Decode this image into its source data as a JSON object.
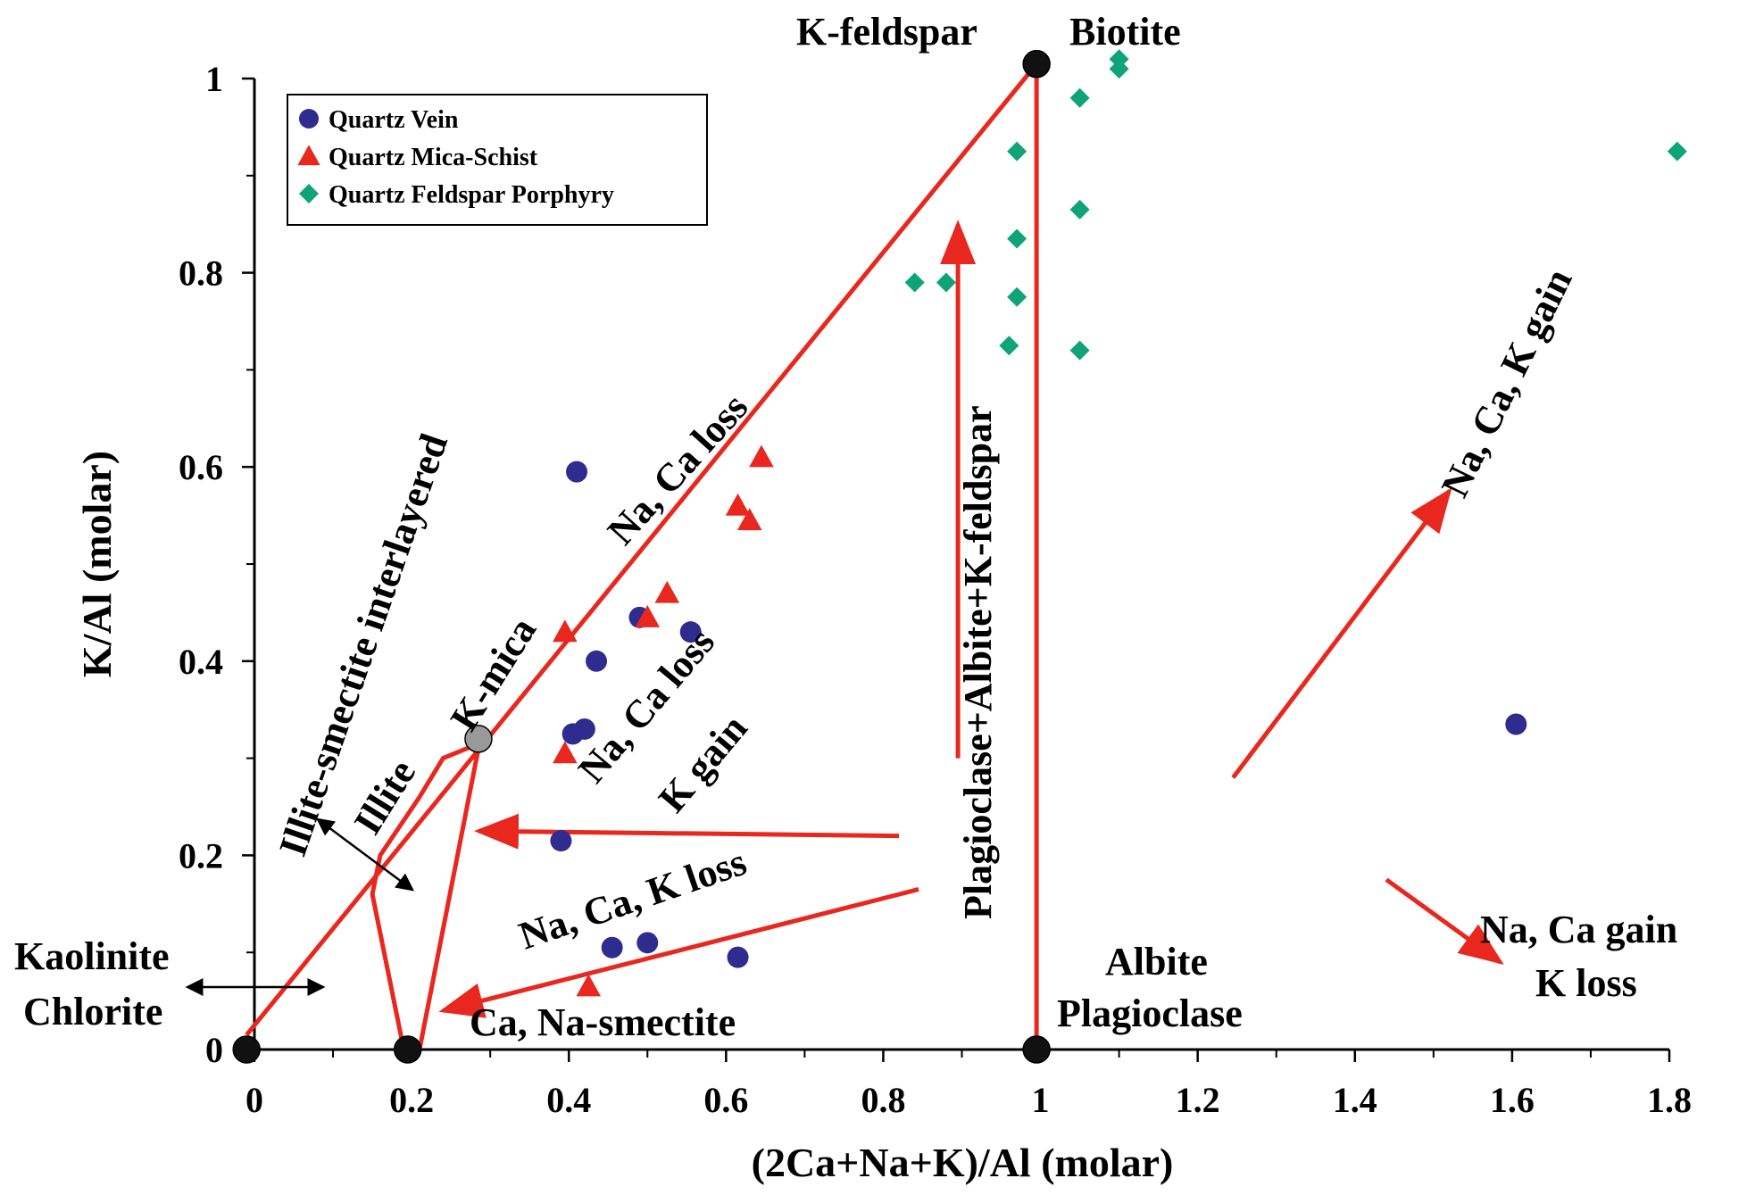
{
  "chart_data": {
    "type": "scatter",
    "xlabel": "(2Ca+Na+K)/Al (molar)",
    "ylabel": "K/Al (molar)",
    "xlim": [
      0,
      1.8
    ],
    "ylim": [
      0,
      1
    ],
    "xticks": [
      "0",
      "0.2",
      "0.4",
      "0.6",
      "0.8",
      "1",
      "1.2",
      "1.4",
      "1.6",
      "1.8"
    ],
    "yticks": [
      "0",
      "0.2",
      "0.4",
      "0.6",
      "0.8",
      "1"
    ],
    "legend_position": "top-left",
    "series": [
      {
        "name": "Quartz Vein",
        "marker": "circle",
        "color": "#2e2c8f",
        "points": [
          [
            0.41,
            0.595
          ],
          [
            0.49,
            0.445
          ],
          [
            0.555,
            0.43
          ],
          [
            0.435,
            0.4
          ],
          [
            0.405,
            0.325
          ],
          [
            0.42,
            0.33
          ],
          [
            0.39,
            0.215
          ],
          [
            0.455,
            0.105
          ],
          [
            0.5,
            0.11
          ],
          [
            0.615,
            0.095
          ],
          [
            1.605,
            0.335
          ]
        ]
      },
      {
        "name": "Quartz Mica-Schist",
        "marker": "triangle",
        "color": "#e8281e",
        "points": [
          [
            0.645,
            0.61
          ],
          [
            0.615,
            0.56
          ],
          [
            0.63,
            0.545
          ],
          [
            0.525,
            0.47
          ],
          [
            0.5,
            0.445
          ],
          [
            0.395,
            0.43
          ],
          [
            0.395,
            0.305
          ],
          [
            0.425,
            0.065
          ]
        ]
      },
      {
        "name": "Quartz Feldspar Porphyry",
        "marker": "diamond",
        "color": "#0fa37a",
        "points": [
          [
            1.1,
            1.02
          ],
          [
            1.1,
            1.01
          ],
          [
            1.05,
            0.98
          ],
          [
            0.97,
            0.925
          ],
          [
            1.05,
            0.865
          ],
          [
            0.97,
            0.835
          ],
          [
            0.84,
            0.79
          ],
          [
            0.88,
            0.79
          ],
          [
            0.97,
            0.775
          ],
          [
            0.96,
            0.725
          ],
          [
            1.05,
            0.72
          ],
          [
            1.81,
            0.925
          ]
        ]
      }
    ],
    "reference_points": [
      {
        "name": "K-feldspar",
        "x": 0.995,
        "y": 1.015,
        "color": "#111111"
      },
      {
        "name": "K-mica",
        "x": 0.285,
        "y": 0.32,
        "color": "#999999"
      },
      {
        "name": "Kaolinite-Chlorite",
        "x": -0.01,
        "y": 0,
        "color": "#111111"
      },
      {
        "name": "Ca, Na-smectite",
        "x": 0.195,
        "y": 0,
        "color": "#111111"
      },
      {
        "name": "Albite-Plagioclase",
        "x": 0.995,
        "y": 0,
        "color": "#111111"
      }
    ],
    "reference_lines": [
      {
        "name": "kaolinite-kfeldspar",
        "points": [
          [
            -0.01,
            0.015
          ],
          [
            0.995,
            1.015
          ]
        ]
      },
      {
        "name": "kfeldspar-albite",
        "points": [
          [
            0.995,
            1.015
          ],
          [
            0.995,
            0
          ]
        ]
      },
      {
        "name": "kmica-smectite",
        "points": [
          [
            0.285,
            0.31
          ],
          [
            0.21,
            0
          ]
        ]
      },
      {
        "name": "illite-field-outline",
        "points": [
          [
            0.285,
            0.315
          ],
          [
            0.24,
            0.3
          ],
          [
            0.21,
            0.26
          ],
          [
            0.16,
            0.2
          ],
          [
            0.15,
            0.16
          ],
          [
            0.19,
            0
          ]
        ]
      }
    ],
    "arrows": [
      {
        "name": "plagioclase-albite-kfeldspar-arrow",
        "from": [
          0.895,
          0.3
        ],
        "to": [
          0.895,
          0.85
        ]
      },
      {
        "name": "na-ca-k-gain-arrow",
        "from": [
          1.245,
          0.28
        ],
        "to": [
          1.52,
          0.575
        ]
      },
      {
        "name": "na-ca-gain-k-loss-arrow",
        "from": [
          1.44,
          0.175
        ],
        "to": [
          1.585,
          0.09
        ]
      },
      {
        "name": "na-ca-loss-k-gain-arrow",
        "from": [
          0.82,
          0.22
        ],
        "to": [
          0.285,
          0.225
        ]
      },
      {
        "name": "na-ca-k-loss-arrow",
        "from": [
          0.845,
          0.165
        ],
        "to": [
          0.24,
          0.04
        ]
      }
    ],
    "annotations": {
      "k_feldspar": "K-feldspar",
      "biotite": "Biotite",
      "albite": "Albite",
      "plagioclase": "Plagioclase",
      "kaolinite": "Kaolinite",
      "chlorite": "Chlorite",
      "smectite": "Ca, Na-smectite",
      "k_mica": "K-mica",
      "illite": "Illite",
      "illite_smectite": "Illite-smectite interlayered",
      "na_ca_loss": "Na, Ca loss",
      "na_ca_loss_k_gain_1": "Na, Ca loss",
      "na_ca_loss_k_gain_2": "K gain",
      "na_ca_k_loss": "Na, Ca, K loss",
      "plag_albite_kfeld": "Plagioclase+Albite+K-feldspar",
      "na_ca_k_gain": "Na, Ca, K gain",
      "na_ca_gain": "Na, Ca gain",
      "k_loss": "K loss"
    }
  }
}
